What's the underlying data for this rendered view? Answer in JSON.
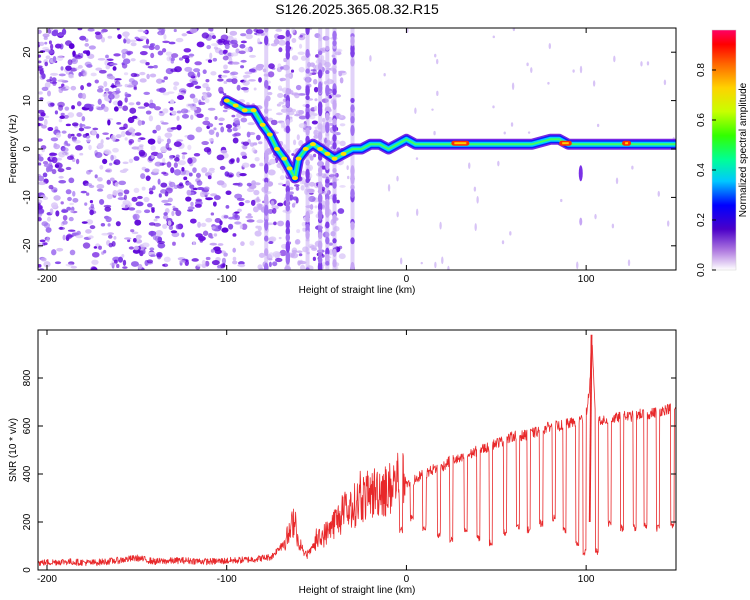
{
  "figure_title": "S126.2025.365.08.32.R15",
  "chart_data": [
    {
      "type": "heatmap",
      "title": "",
      "xlabel": "Height of straight line (km)",
      "ylabel": "Frequency (Hz)",
      "xlim": [
        -205,
        150
      ],
      "ylim": [
        -25,
        25
      ],
      "xticks": [
        -200,
        -100,
        0,
        100
      ],
      "yticks": [
        -20,
        -10,
        0,
        10,
        20
      ],
      "colorbar": {
        "label": "Normalized spectral amplitude",
        "range": [
          0,
          0.96
        ],
        "ticks": [
          0.0,
          0.2,
          0.4,
          0.6,
          0.8
        ]
      },
      "tone_track": {
        "x": [
          -100,
          -95,
          -90,
          -85,
          -80,
          -76,
          -72,
          -68,
          -65,
          -62,
          -60,
          -56,
          -52,
          -48,
          -44,
          -40,
          -35,
          -30,
          -25,
          -20,
          -15,
          -10,
          -5,
          0,
          5,
          10,
          20,
          30,
          40,
          50,
          60,
          70,
          80,
          85,
          90,
          95,
          100,
          105,
          110,
          120,
          130,
          140,
          150
        ],
        "y": [
          10,
          9,
          8,
          8,
          5,
          3,
          0,
          -2,
          -4,
          -6,
          -2,
          0,
          1,
          0,
          -1,
          -2,
          -1,
          0,
          0,
          1,
          1,
          0,
          1,
          2,
          1,
          1,
          1,
          1,
          1,
          1,
          1,
          1,
          2,
          2,
          1,
          1,
          1,
          1,
          1,
          1,
          1,
          1,
          1
        ],
        "peak_regions_x": [
          [
            25,
            35
          ],
          [
            85,
            92
          ],
          [
            120,
            125
          ]
        ]
      },
      "noise_region_x": [
        -205,
        -60
      ]
    },
    {
      "type": "line",
      "title": "",
      "xlabel": "Height of straight line (km)",
      "ylabel": "SNR (10 * v/v)",
      "xlim": [
        -205,
        150
      ],
      "ylim": [
        0,
        1000
      ],
      "xticks": [
        -200,
        -100,
        0,
        100
      ],
      "yticks": [
        0,
        200,
        400,
        600,
        800
      ],
      "series": [
        {
          "name": "SNR",
          "color": "#e8282a",
          "x": [
            -205,
            -190,
            -175,
            -160,
            -150,
            -140,
            -125,
            -110,
            -95,
            -85,
            -75,
            -70,
            -65,
            -62,
            -60,
            -57,
            -55,
            -50,
            -45,
            -40,
            -35,
            -30,
            -25,
            -20,
            -15,
            -10,
            -5,
            0,
            5,
            10,
            15,
            20,
            25,
            30,
            35,
            40,
            45,
            50,
            55,
            60,
            65,
            70,
            75,
            80,
            85,
            90,
            95,
            98,
            100,
            102,
            103,
            104,
            105,
            107,
            110,
            115,
            120,
            125,
            130,
            135,
            140,
            145,
            150
          ],
          "y": [
            30,
            35,
            30,
            40,
            50,
            35,
            40,
            35,
            40,
            45,
            55,
            100,
            150,
            230,
            100,
            70,
            60,
            120,
            150,
            200,
            230,
            260,
            300,
            310,
            340,
            330,
            380,
            350,
            380,
            400,
            420,
            430,
            460,
            460,
            480,
            500,
            510,
            530,
            540,
            560,
            560,
            570,
            580,
            600,
            600,
            610,
            620,
            630,
            650,
            760,
            980,
            820,
            650,
            630,
            620,
            630,
            640,
            640,
            650,
            650,
            660,
            670,
            680
          ]
        }
      ],
      "dropouts": [
        {
          "x": -3,
          "y": 150
        },
        {
          "x": 3,
          "y": 200
        },
        {
          "x": 10,
          "y": 160
        },
        {
          "x": 18,
          "y": 130
        },
        {
          "x": 25,
          "y": 110
        },
        {
          "x": 33,
          "y": 150
        },
        {
          "x": 40,
          "y": 120
        },
        {
          "x": 47,
          "y": 100
        },
        {
          "x": 55,
          "y": 140
        },
        {
          "x": 62,
          "y": 160
        },
        {
          "x": 68,
          "y": 150
        },
        {
          "x": 75,
          "y": 180
        },
        {
          "x": 82,
          "y": 200
        },
        {
          "x": 88,
          "y": 150
        },
        {
          "x": 95,
          "y": 90
        },
        {
          "x": 99,
          "y": 60
        },
        {
          "x": 106,
          "y": 60
        },
        {
          "x": 113,
          "y": 180
        },
        {
          "x": 120,
          "y": 160
        },
        {
          "x": 127,
          "y": 160
        },
        {
          "x": 133,
          "y": 170
        },
        {
          "x": 140,
          "y": 160
        },
        {
          "x": 148,
          "y": 170
        }
      ]
    }
  ]
}
